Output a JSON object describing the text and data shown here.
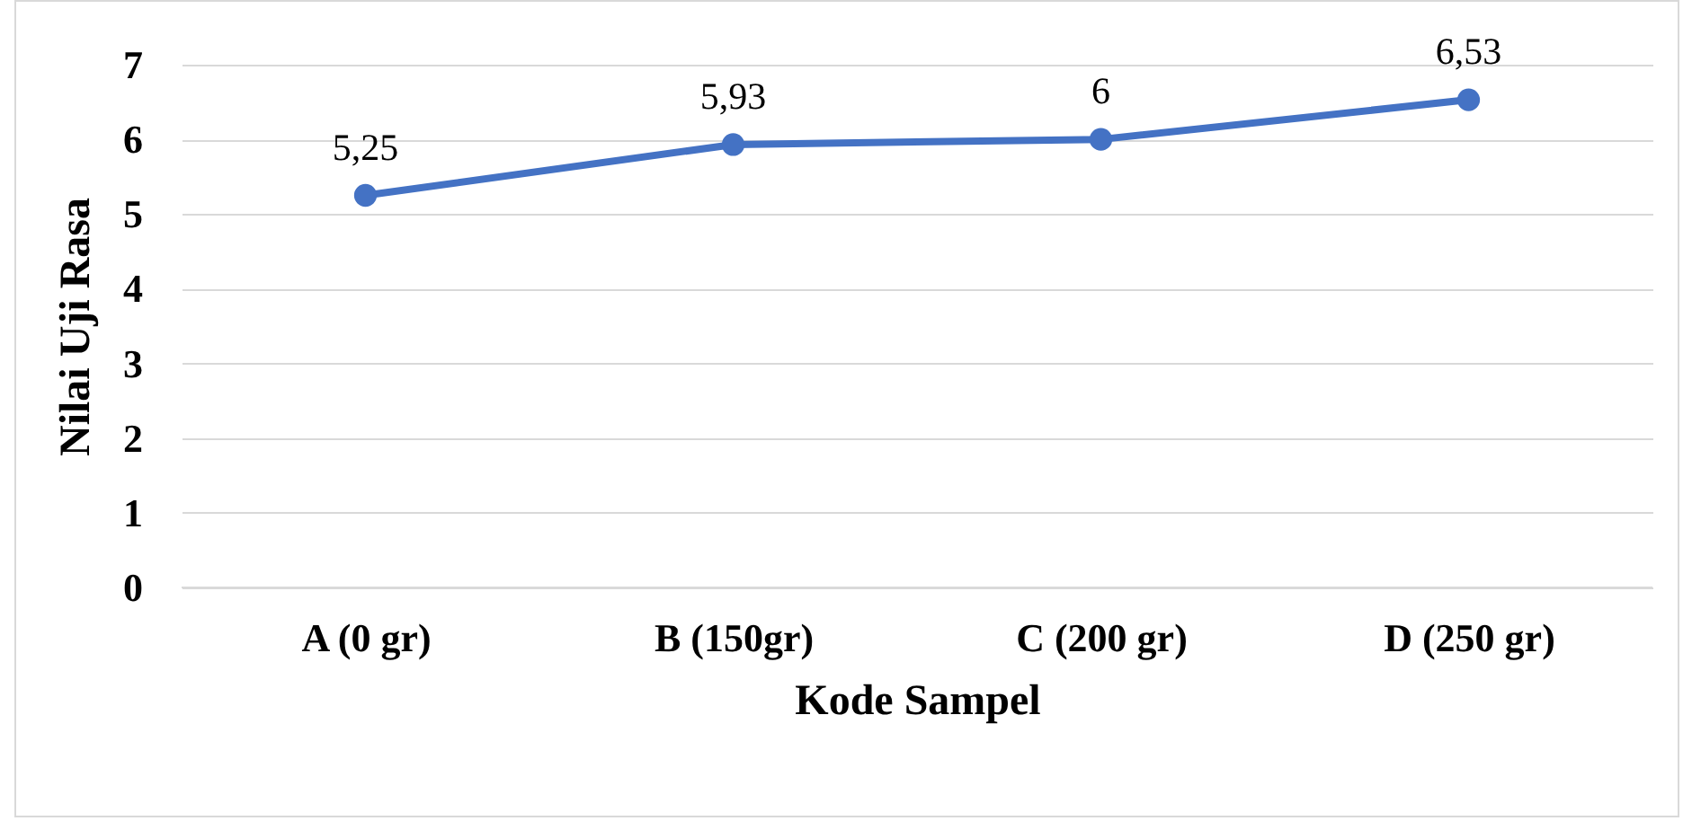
{
  "chart_data": {
    "type": "line",
    "xlabel": "Kode Sampel",
    "ylabel": "Nilai Uji Rasa",
    "categories": [
      "A (0 gr)",
      "B (150gr)",
      "C (200 gr)",
      "D (250 gr)"
    ],
    "series": [
      {
        "color": "#4472c4",
        "values": [
          5.25,
          5.93,
          6,
          6.53
        ],
        "value_labels": [
          "5,25",
          "5,93",
          "6",
          "6,53"
        ]
      }
    ],
    "ylim": [
      0,
      7
    ],
    "yticks": [
      0,
      1,
      2,
      3,
      4,
      5,
      6,
      7
    ],
    "grid": "y",
    "marker": "circle",
    "line_style": "solid",
    "legend": false
  }
}
